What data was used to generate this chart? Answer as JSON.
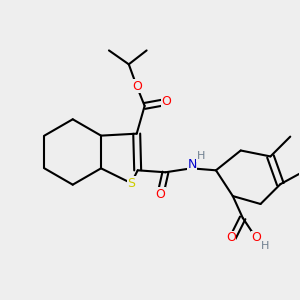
{
  "bg_color": "#eeeeee",
  "atom_colors": {
    "C": "#000000",
    "O": "#ff0000",
    "N": "#0000cd",
    "S": "#cccc00",
    "H": "#708090"
  },
  "bond_color": "#000000",
  "bond_width": 1.5
}
